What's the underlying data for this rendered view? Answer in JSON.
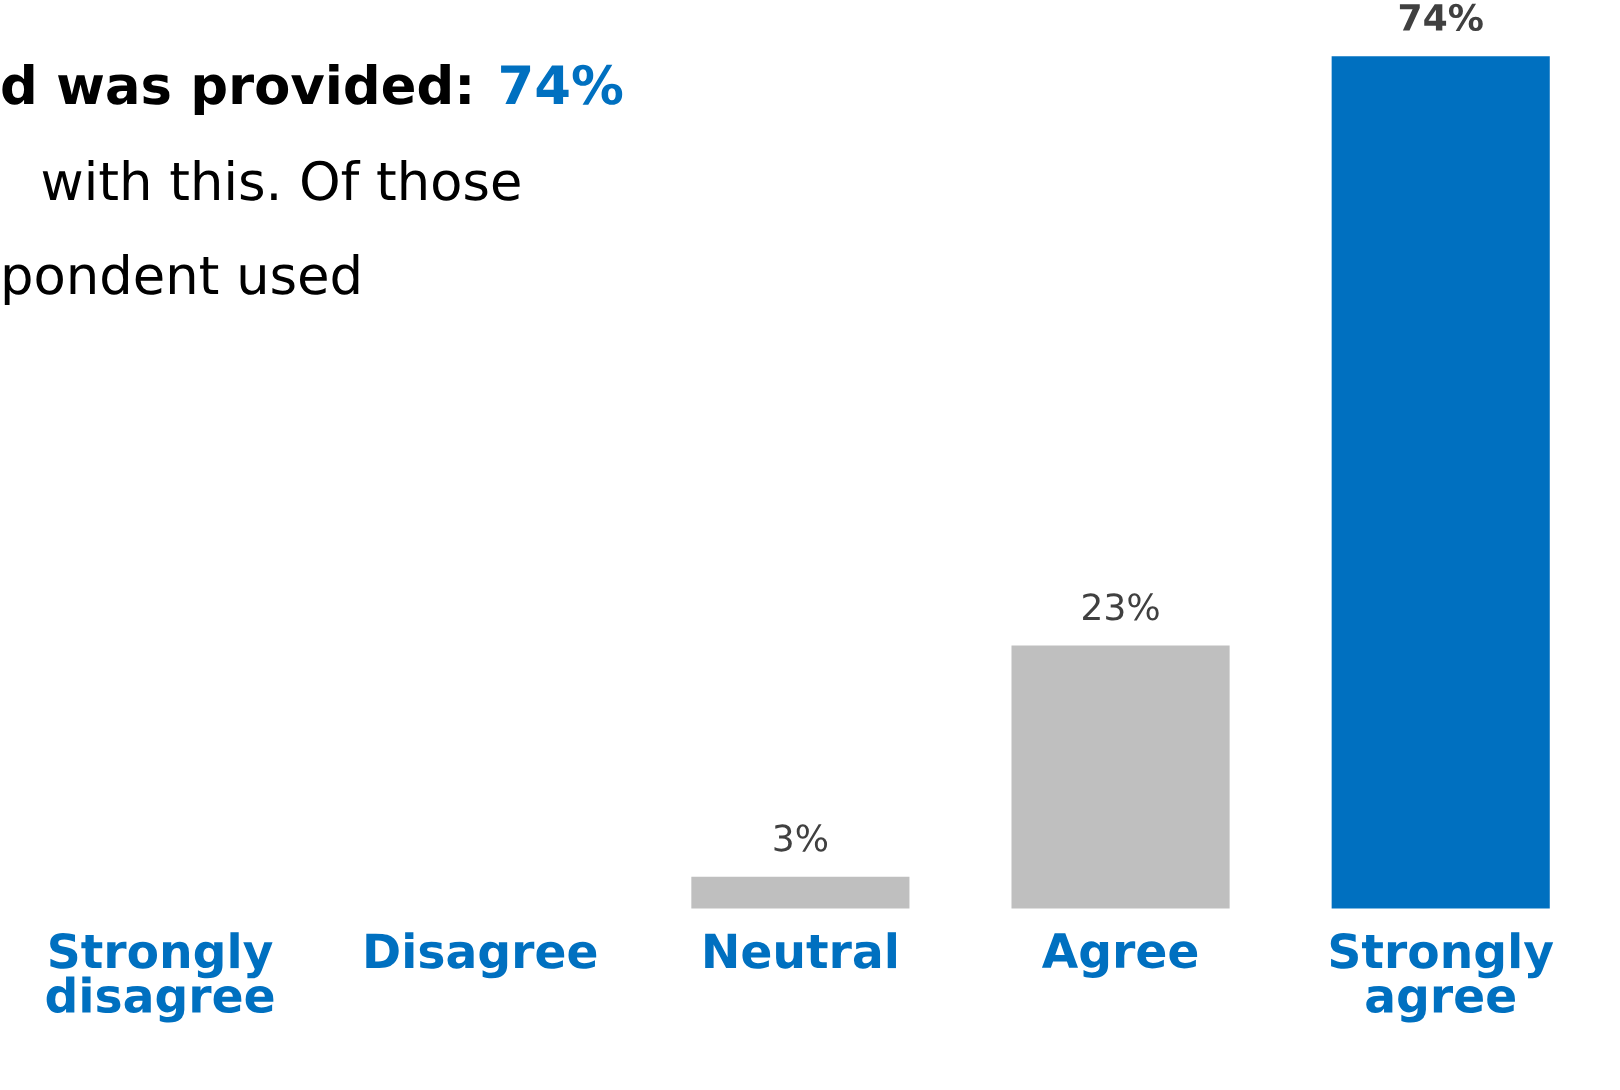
{
  "chart_data": {
    "type": "bar",
    "categories": [
      "Strongly\ndisagree",
      "Disagree",
      "Neutral",
      "Agree",
      "Strongly\nagree"
    ],
    "values": [
      null,
      null,
      3,
      23,
      74
    ],
    "colors": [
      "#bfbfbf",
      "#bfbfbf",
      "#bfbfbf",
      "#bfbfbf",
      "#0070c0"
    ],
    "value_labels": [
      null,
      null,
      "3%",
      "23%",
      "74%"
    ],
    "annotations": [
      "d was provided:",
      "74%",
      "with this. Of those",
      "pondent used"
    ]
  }
}
